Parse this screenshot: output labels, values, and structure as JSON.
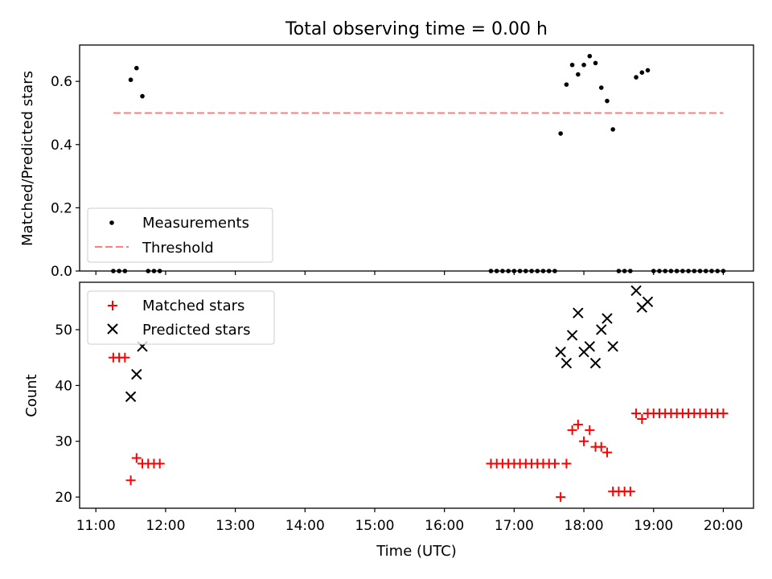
{
  "chart_data": [
    {
      "type": "scatter",
      "title": "Total observing time = 0.00 h",
      "xlabel": "",
      "ylabel": "Matched/Predicted stars",
      "xlim": [
        "10:46",
        "20:26"
      ],
      "ylim": [
        0,
        0.715
      ],
      "yticks": [
        "0.0",
        "0.2",
        "0.4",
        "0.6"
      ],
      "ytick_values": [
        0,
        0.2,
        0.4,
        0.6
      ],
      "grid": false,
      "legend": {
        "placement": "lower-left",
        "entries": [
          "Measurements",
          "Threshold"
        ]
      },
      "series": [
        {
          "name": "Measurements",
          "marker": "dot",
          "color": "#000000",
          "x": [
            "11:15",
            "11:20",
            "11:25",
            "11:30",
            "11:35",
            "11:40",
            "11:45",
            "11:50",
            "11:55",
            "16:40",
            "16:45",
            "16:50",
            "16:55",
            "17:00",
            "17:05",
            "17:10",
            "17:15",
            "17:20",
            "17:25",
            "17:30",
            "17:35",
            "17:40",
            "17:45",
            "17:50",
            "17:55",
            "18:00",
            "18:05",
            "18:10",
            "18:15",
            "18:20",
            "18:25",
            "18:30",
            "18:35",
            "18:40",
            "18:45",
            "18:50",
            "18:55",
            "19:00",
            "19:05",
            "19:10",
            "19:15",
            "19:20",
            "19:25",
            "19:30",
            "19:35",
            "19:40",
            "19:45",
            "19:50",
            "19:55",
            "20:00"
          ],
          "y": [
            0,
            0,
            0,
            0.605,
            0.642,
            0.553,
            0,
            0,
            0,
            0,
            0,
            0,
            0,
            0,
            0,
            0,
            0,
            0,
            0,
            0,
            0,
            0.435,
            0.59,
            0.652,
            0.622,
            0.652,
            0.68,
            0.658,
            0.58,
            0.538,
            0.448,
            0,
            0,
            0,
            0.613,
            0.628,
            0.635,
            0,
            0,
            0,
            0,
            0,
            0,
            0,
            0,
            0,
            0,
            0,
            0,
            0
          ]
        },
        {
          "name": "Threshold",
          "marker": "dashed-line",
          "color": "#ff7f7f",
          "x": [
            "11:15",
            "20:00"
          ],
          "y": [
            0.5,
            0.5
          ]
        }
      ]
    },
    {
      "type": "scatter",
      "title": "",
      "xlabel": "Time (UTC)",
      "ylabel": "Count",
      "xlim": [
        "10:46",
        "20:26"
      ],
      "ylim": [
        18,
        58.5
      ],
      "xticks": [
        "11:00",
        "12:00",
        "13:00",
        "14:00",
        "15:00",
        "16:00",
        "17:00",
        "18:00",
        "19:00",
        "20:00"
      ],
      "yticks": [
        "20",
        "30",
        "40",
        "50"
      ],
      "ytick_values": [
        20,
        30,
        40,
        50
      ],
      "grid": false,
      "legend": {
        "placement": "upper-left",
        "entries": [
          "Matched stars",
          "Predicted stars"
        ]
      },
      "series": [
        {
          "name": "Matched stars",
          "marker": "plus",
          "color": "#ff0000",
          "x": [
            "11:15",
            "11:20",
            "11:25",
            "11:30",
            "11:35",
            "11:40",
            "11:45",
            "11:50",
            "11:55",
            "16:40",
            "16:45",
            "16:50",
            "16:55",
            "17:00",
            "17:05",
            "17:10",
            "17:15",
            "17:20",
            "17:25",
            "17:30",
            "17:35",
            "17:40",
            "17:45",
            "17:50",
            "17:55",
            "18:00",
            "18:05",
            "18:10",
            "18:15",
            "18:20",
            "18:25",
            "18:30",
            "18:35",
            "18:40",
            "18:45",
            "18:50",
            "18:55",
            "19:00",
            "19:05",
            "19:10",
            "19:15",
            "19:20",
            "19:25",
            "19:30",
            "19:35",
            "19:40",
            "19:45",
            "19:50",
            "19:55",
            "20:00"
          ],
          "y": [
            45,
            45,
            45,
            23,
            27,
            26,
            26,
            26,
            26,
            26,
            26,
            26,
            26,
            26,
            26,
            26,
            26,
            26,
            26,
            26,
            26,
            20,
            26,
            32,
            33,
            30,
            32,
            29,
            29,
            28,
            21,
            21,
            21,
            21,
            35,
            34,
            35,
            35,
            35,
            35,
            35,
            35,
            35,
            35,
            35,
            35,
            35,
            35,
            35,
            35
          ]
        },
        {
          "name": "Predicted stars",
          "marker": "x",
          "color": "#000000",
          "x": [
            "11:30",
            "11:35",
            "11:40",
            "17:40",
            "17:45",
            "17:50",
            "17:55",
            "18:00",
            "18:05",
            "18:10",
            "18:15",
            "18:20",
            "18:25",
            "18:45",
            "18:50",
            "18:55"
          ],
          "y": [
            38,
            42,
            47,
            46,
            44,
            49,
            53,
            46,
            47,
            44,
            50,
            52,
            47,
            57,
            54,
            55
          ]
        }
      ]
    }
  ]
}
